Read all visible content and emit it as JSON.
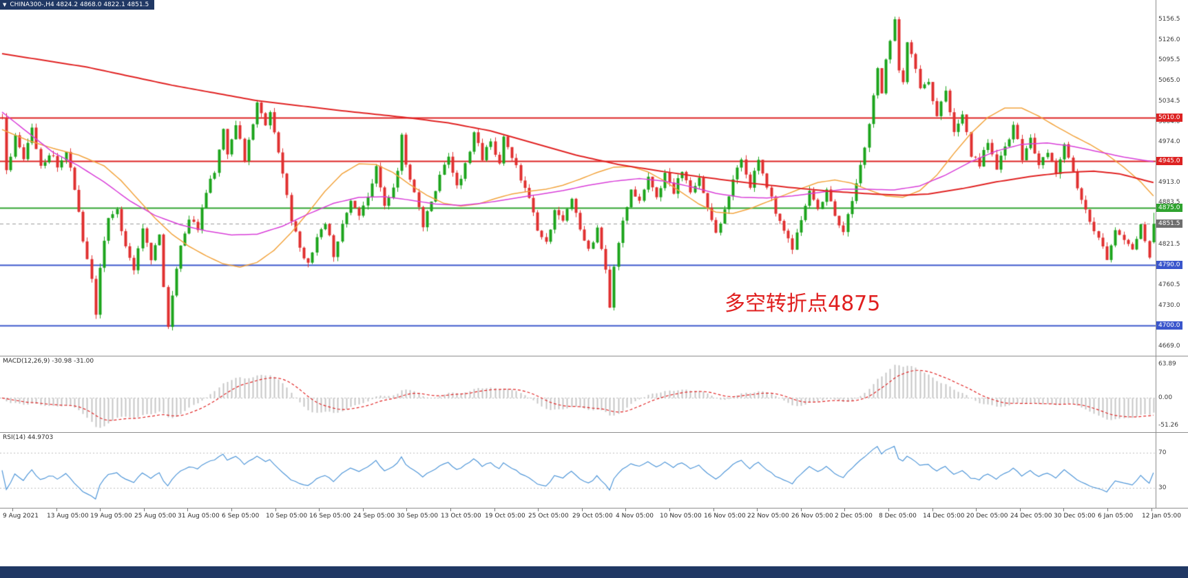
{
  "window": {
    "symbol_chip": "CHINA300-,H4 4824.2 4868.0 4822.1 4851.5",
    "chevron": "▼"
  },
  "colors": {
    "up": "#1ca41c",
    "down": "#e03030",
    "ma_fast": "#f2a33c",
    "ma_mid": "#d83cd8",
    "ma_slow": "#e02222",
    "macd_hist": "#c6c6c6",
    "macd_signal": "#e02222",
    "rsi": "#4f96d8",
    "chip_bg": "#203864"
  },
  "chart_data": {
    "type": "candlestick",
    "symbol": "CHINA300-",
    "timeframe": "H4",
    "ohlc_display": {
      "open": 4824.2,
      "high": 4868.0,
      "low": 4822.1,
      "close": 4851.5
    },
    "bars": 272,
    "price_range": [
      4655,
      5185
    ],
    "axis_labels": [
      5156.5,
      5126.0,
      5095.5,
      5065.0,
      5034.5,
      5004.0,
      4974.0,
      4913.0,
      4883.5,
      4821.5,
      4760.5,
      4730.0,
      4669.0
    ],
    "levels": [
      {
        "value": 5010.0,
        "label": "5010.0",
        "hex": "#dd2222",
        "role": "resistance"
      },
      {
        "value": 4945.0,
        "label": "4945.0",
        "hex": "#dd2222",
        "role": "resistance"
      },
      {
        "value": 4875.0,
        "label": "4875.0",
        "hex": "#2fa32f",
        "role": "pivot"
      },
      {
        "value": 4790.0,
        "label": "4790.0",
        "hex": "#3a56cc",
        "role": "support"
      },
      {
        "value": 4700.0,
        "label": "4700.0",
        "hex": "#3a56cc",
        "role": "support"
      }
    ],
    "current_price": {
      "value": 4851.5,
      "label": "4851.5",
      "hex": "#6e6e6e"
    },
    "annotation": {
      "text": "多空转折点4875",
      "color": "#e01f1f"
    },
    "close_path": [
      [
        0,
        5010
      ],
      [
        1,
        4928
      ],
      [
        3,
        4985
      ],
      [
        5,
        4950
      ],
      [
        7,
        4990
      ],
      [
        9,
        4935
      ],
      [
        11,
        4958
      ],
      [
        13,
        4940
      ],
      [
        15,
        4962
      ],
      [
        17,
        4900
      ],
      [
        19,
        4830
      ],
      [
        21,
        4770
      ],
      [
        22,
        4715
      ],
      [
        23,
        4788
      ],
      [
        25,
        4856
      ],
      [
        27,
        4872
      ],
      [
        29,
        4815
      ],
      [
        31,
        4780
      ],
      [
        33,
        4842
      ],
      [
        35,
        4800
      ],
      [
        37,
        4836
      ],
      [
        38,
        4762
      ],
      [
        39,
        4695
      ],
      [
        40,
        4748
      ],
      [
        42,
        4820
      ],
      [
        44,
        4862
      ],
      [
        46,
        4842
      ],
      [
        48,
        4902
      ],
      [
        50,
        4932
      ],
      [
        52,
        4990
      ],
      [
        53,
        4950
      ],
      [
        55,
        5002
      ],
      [
        57,
        4946
      ],
      [
        58,
        4972
      ],
      [
        60,
        5036
      ],
      [
        62,
        4996
      ],
      [
        63,
        5022
      ],
      [
        65,
        4962
      ],
      [
        66,
        4926
      ],
      [
        68,
        4856
      ],
      [
        70,
        4820
      ],
      [
        72,
        4790
      ],
      [
        74,
        4836
      ],
      [
        76,
        4856
      ],
      [
        78,
        4806
      ],
      [
        80,
        4850
      ],
      [
        82,
        4882
      ],
      [
        84,
        4866
      ],
      [
        86,
        4896
      ],
      [
        88,
        4936
      ],
      [
        90,
        4880
      ],
      [
        92,
        4906
      ],
      [
        93,
        4932
      ],
      [
        94,
        4986
      ],
      [
        95,
        4936
      ],
      [
        97,
        4902
      ],
      [
        99,
        4846
      ],
      [
        101,
        4886
      ],
      [
        103,
        4920
      ],
      [
        105,
        4950
      ],
      [
        107,
        4906
      ],
      [
        109,
        4940
      ],
      [
        111,
        4986
      ],
      [
        113,
        4950
      ],
      [
        115,
        4976
      ],
      [
        117,
        4940
      ],
      [
        118,
        4984
      ],
      [
        120,
        4950
      ],
      [
        122,
        4920
      ],
      [
        124,
        4890
      ],
      [
        126,
        4846
      ],
      [
        128,
        4820
      ],
      [
        130,
        4870
      ],
      [
        132,
        4856
      ],
      [
        134,
        4886
      ],
      [
        136,
        4840
      ],
      [
        138,
        4810
      ],
      [
        140,
        4846
      ],
      [
        142,
        4780
      ],
      [
        143,
        4726
      ],
      [
        144,
        4790
      ],
      [
        146,
        4860
      ],
      [
        148,
        4900
      ],
      [
        150,
        4886
      ],
      [
        152,
        4920
      ],
      [
        154,
        4890
      ],
      [
        156,
        4926
      ],
      [
        158,
        4900
      ],
      [
        160,
        4930
      ],
      [
        162,
        4896
      ],
      [
        164,
        4920
      ],
      [
        166,
        4880
      ],
      [
        168,
        4836
      ],
      [
        170,
        4870
      ],
      [
        172,
        4916
      ],
      [
        174,
        4946
      ],
      [
        176,
        4910
      ],
      [
        178,
        4950
      ],
      [
        180,
        4906
      ],
      [
        182,
        4870
      ],
      [
        184,
        4840
      ],
      [
        186,
        4816
      ],
      [
        188,
        4860
      ],
      [
        190,
        4896
      ],
      [
        192,
        4870
      ],
      [
        194,
        4906
      ],
      [
        196,
        4866
      ],
      [
        198,
        4840
      ],
      [
        200,
        4890
      ],
      [
        202,
        4940
      ],
      [
        204,
        4996
      ],
      [
        206,
        5080
      ],
      [
        207,
        5042
      ],
      [
        208,
        5096
      ],
      [
        210,
        5158
      ],
      [
        211,
        5082
      ],
      [
        212,
        5062
      ],
      [
        213,
        5122
      ],
      [
        215,
        5086
      ],
      [
        216,
        5052
      ],
      [
        218,
        5066
      ],
      [
        220,
        5012
      ],
      [
        222,
        5046
      ],
      [
        224,
        4986
      ],
      [
        226,
        5016
      ],
      [
        228,
        4956
      ],
      [
        230,
        4940
      ],
      [
        232,
        4976
      ],
      [
        234,
        4936
      ],
      [
        236,
        4966
      ],
      [
        238,
        4996
      ],
      [
        240,
        4950
      ],
      [
        242,
        4976
      ],
      [
        244,
        4940
      ],
      [
        246,
        4962
      ],
      [
        248,
        4930
      ],
      [
        250,
        4966
      ],
      [
        252,
        4926
      ],
      [
        254,
        4890
      ],
      [
        256,
        4856
      ],
      [
        258,
        4830
      ],
      [
        260,
        4800
      ],
      [
        262,
        4840
      ],
      [
        264,
        4830
      ],
      [
        266,
        4816
      ],
      [
        268,
        4846
      ],
      [
        269,
        4824
      ],
      [
        270,
        4798
      ],
      [
        271,
        4851.5
      ]
    ],
    "ma_slow_path": [
      [
        0,
        5105
      ],
      [
        20,
        5085
      ],
      [
        40,
        5058
      ],
      [
        60,
        5035
      ],
      [
        80,
        5020
      ],
      [
        95,
        5010
      ],
      [
        105,
        5002
      ],
      [
        115,
        4990
      ],
      [
        125,
        4972
      ],
      [
        135,
        4954
      ],
      [
        145,
        4940
      ],
      [
        155,
        4930
      ],
      [
        165,
        4921
      ],
      [
        175,
        4913
      ],
      [
        185,
        4906
      ],
      [
        195,
        4900
      ],
      [
        205,
        4896
      ],
      [
        212,
        4894
      ],
      [
        218,
        4896
      ],
      [
        226,
        4904
      ],
      [
        234,
        4914
      ],
      [
        242,
        4922
      ],
      [
        250,
        4928
      ],
      [
        257,
        4930
      ],
      [
        263,
        4926
      ],
      [
        271,
        4913
      ]
    ],
    "ma_mid_path": [
      [
        0,
        5018
      ],
      [
        6,
        4988
      ],
      [
        12,
        4958
      ],
      [
        18,
        4938
      ],
      [
        24,
        4914
      ],
      [
        30,
        4886
      ],
      [
        36,
        4864
      ],
      [
        42,
        4850
      ],
      [
        48,
        4841
      ],
      [
        54,
        4835
      ],
      [
        60,
        4836
      ],
      [
        66,
        4848
      ],
      [
        72,
        4866
      ],
      [
        78,
        4882
      ],
      [
        84,
        4891
      ],
      [
        90,
        4892
      ],
      [
        96,
        4887
      ],
      [
        102,
        4881
      ],
      [
        108,
        4879
      ],
      [
        114,
        4883
      ],
      [
        120,
        4889
      ],
      [
        126,
        4895
      ],
      [
        132,
        4901
      ],
      [
        138,
        4909
      ],
      [
        144,
        4915
      ],
      [
        150,
        4919
      ],
      [
        156,
        4915
      ],
      [
        162,
        4907
      ],
      [
        168,
        4897
      ],
      [
        174,
        4891
      ],
      [
        180,
        4890
      ],
      [
        186,
        4893
      ],
      [
        192,
        4898
      ],
      [
        198,
        4903
      ],
      [
        204,
        4903
      ],
      [
        210,
        4902
      ],
      [
        216,
        4908
      ],
      [
        222,
        4924
      ],
      [
        228,
        4944
      ],
      [
        234,
        4960
      ],
      [
        240,
        4970
      ],
      [
        246,
        4972
      ],
      [
        252,
        4967
      ],
      [
        258,
        4959
      ],
      [
        264,
        4951
      ],
      [
        271,
        4944
      ]
    ],
    "ma_fast_path": [
      [
        0,
        4992
      ],
      [
        6,
        4976
      ],
      [
        12,
        4964
      ],
      [
        18,
        4954
      ],
      [
        24,
        4938
      ],
      [
        28,
        4916
      ],
      [
        32,
        4888
      ],
      [
        36,
        4860
      ],
      [
        40,
        4836
      ],
      [
        44,
        4818
      ],
      [
        48,
        4804
      ],
      [
        52,
        4792
      ],
      [
        56,
        4787
      ],
      [
        60,
        4794
      ],
      [
        64,
        4812
      ],
      [
        68,
        4838
      ],
      [
        72,
        4868
      ],
      [
        76,
        4900
      ],
      [
        80,
        4926
      ],
      [
        84,
        4941
      ],
      [
        88,
        4940
      ],
      [
        92,
        4928
      ],
      [
        96,
        4910
      ],
      [
        100,
        4894
      ],
      [
        104,
        4882
      ],
      [
        108,
        4878
      ],
      [
        112,
        4881
      ],
      [
        116,
        4889
      ],
      [
        120,
        4896
      ],
      [
        124,
        4900
      ],
      [
        128,
        4903
      ],
      [
        132,
        4909
      ],
      [
        136,
        4918
      ],
      [
        140,
        4928
      ],
      [
        144,
        4936
      ],
      [
        148,
        4937
      ],
      [
        152,
        4929
      ],
      [
        156,
        4915
      ],
      [
        160,
        4898
      ],
      [
        164,
        4881
      ],
      [
        168,
        4869
      ],
      [
        172,
        4867
      ],
      [
        176,
        4874
      ],
      [
        180,
        4884
      ],
      [
        184,
        4894
      ],
      [
        188,
        4904
      ],
      [
        192,
        4913
      ],
      [
        196,
        4917
      ],
      [
        200,
        4912
      ],
      [
        204,
        4902
      ],
      [
        208,
        4893
      ],
      [
        212,
        4891
      ],
      [
        216,
        4901
      ],
      [
        220,
        4924
      ],
      [
        224,
        4956
      ],
      [
        228,
        4986
      ],
      [
        232,
        5010
      ],
      [
        236,
        5024
      ],
      [
        240,
        5024
      ],
      [
        244,
        5012
      ],
      [
        248,
        4997
      ],
      [
        252,
        4983
      ],
      [
        256,
        4970
      ],
      [
        260,
        4955
      ],
      [
        264,
        4936
      ],
      [
        268,
        4914
      ],
      [
        271,
        4893
      ]
    ],
    "macd": {
      "label": "MACD(12,26,9) -30.98 -31.00",
      "params": [
        12,
        26,
        9
      ],
      "values": [
        -30.98,
        -31.0
      ],
      "axis_labels": [
        {
          "value": 63.89,
          "text": "63.89"
        },
        {
          "value": 0,
          "text": "0.00"
        },
        {
          "value": -51.26,
          "text": "-51.26"
        }
      ],
      "range": [
        -64,
        78
      ]
    },
    "rsi": {
      "label": "RSI(14) 44.9703",
      "period": 14,
      "value": 44.9703,
      "levels": [
        70,
        30
      ],
      "axis_labels": [
        {
          "value": 70,
          "text": "70"
        },
        {
          "value": 30,
          "text": "30"
        }
      ],
      "range": [
        8,
        92
      ]
    },
    "time_labels": [
      "9 Aug 2021",
      "13 Aug 05:00",
      "19 Aug 05:00",
      "25 Aug 05:00",
      "31 Aug 05:00",
      "6 Sep 05:00",
      "10 Sep 05:00",
      "16 Sep 05:00",
      "24 Sep 05:00",
      "30 Sep 05:00",
      "13 Oct 05:00",
      "19 Oct 05:00",
      "25 Oct 05:00",
      "29 Oct 05:00",
      "4 Nov 05:00",
      "10 Nov 05:00",
      "16 Nov 05:00",
      "22 Nov 05:00",
      "26 Nov 05:00",
      "2 Dec 05:00",
      "8 Dec 05:00",
      "14 Dec 05:00",
      "20 Dec 05:00",
      "24 Dec 05:00",
      "30 Dec 05:00",
      "6 Jan 05:00",
      "12 Jan 05:00"
    ]
  }
}
